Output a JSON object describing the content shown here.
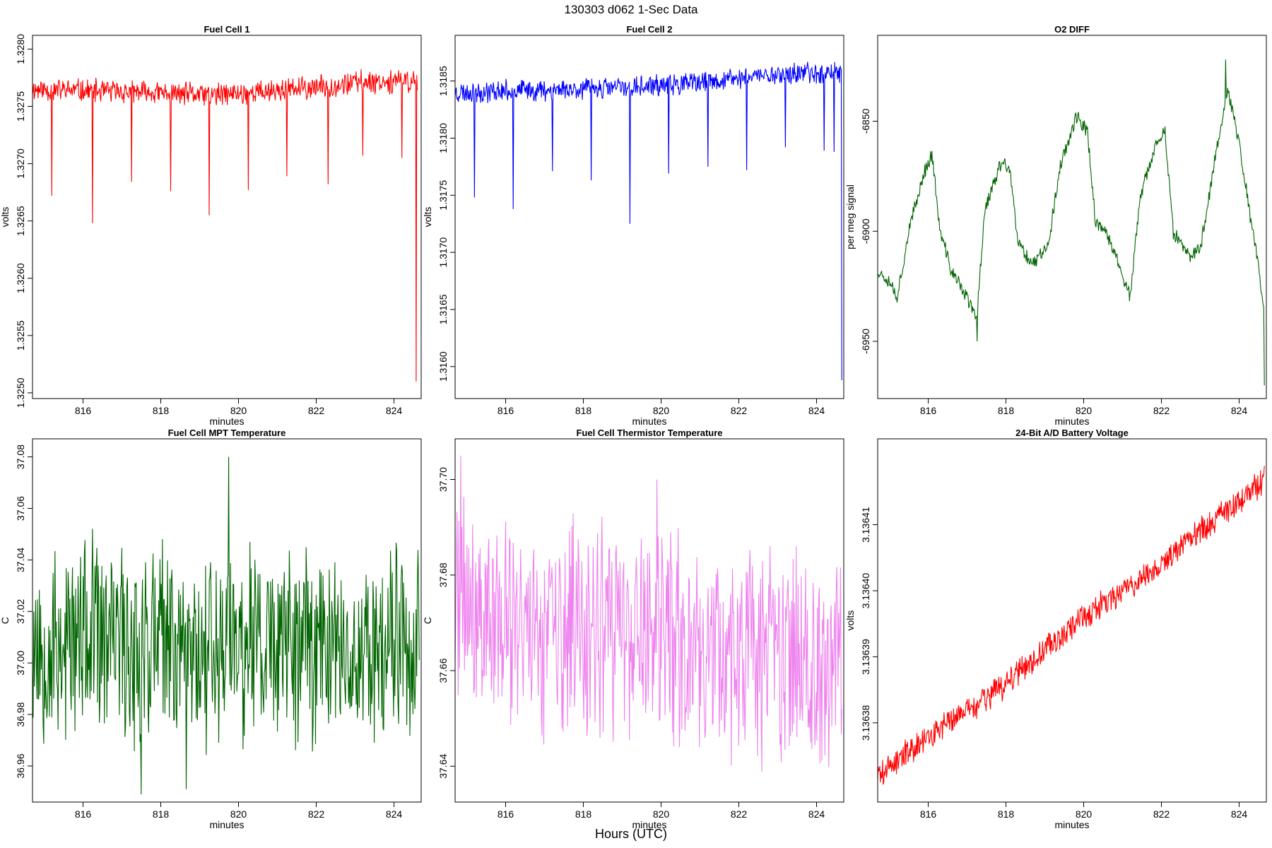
{
  "figure": {
    "title": "130303   d062   1-Sec Data",
    "overall_xlabel": "Hours (UTC)"
  },
  "chart_data": [
    {
      "id": "fc1",
      "type": "line",
      "title": "Fuel Cell 1",
      "xlabel": "minutes",
      "ylabel": "volts",
      "color": "#ff0000",
      "xlim": [
        814.7,
        824.7
      ],
      "ylim": [
        1.32495,
        1.32812
      ],
      "x_ticks": [
        816,
        818,
        820,
        822,
        824
      ],
      "x_tick_labels": [
        "816",
        "818",
        "820",
        "822",
        "824"
      ],
      "y_ticks": [
        1.325,
        1.3255,
        1.326,
        1.3265,
        1.327,
        1.3275,
        1.328
      ],
      "y_tick_labels": [
        "1.3250",
        "1.3255",
        "1.3260",
        "1.3265",
        "1.3270",
        "1.3275",
        "1.3280"
      ],
      "x_range": [
        814.7,
        824.6
      ],
      "base": [
        [
          814.7,
          1.32765
        ],
        [
          819.5,
          1.3276
        ],
        [
          821.5,
          1.32765
        ],
        [
          822.5,
          1.32768
        ],
        [
          823.2,
          1.32772
        ],
        [
          824.6,
          1.32772
        ]
      ],
      "noise": 0.00012,
      "spikes": [
        [
          815.2,
          1.32672
        ],
        [
          816.25,
          1.32648
        ],
        [
          817.25,
          1.32684
        ],
        [
          818.25,
          1.32676
        ],
        [
          819.25,
          1.32655
        ],
        [
          820.25,
          1.32677
        ],
        [
          821.25,
          1.32689
        ],
        [
          822.3,
          1.32682
        ],
        [
          823.2,
          1.32707
        ],
        [
          824.2,
          1.32705
        ],
        [
          824.57,
          1.3251
        ]
      ],
      "points": 700,
      "seed": 11
    },
    {
      "id": "fc2",
      "type": "line",
      "title": "Fuel Cell 2",
      "xlabel": "minutes",
      "ylabel": "volts",
      "color": "#0000ff",
      "xlim": [
        814.7,
        824.7
      ],
      "ylim": [
        1.31572,
        1.3189
      ],
      "x_ticks": [
        816,
        818,
        820,
        822,
        824
      ],
      "x_tick_labels": [
        "816",
        "818",
        "820",
        "822",
        "824"
      ],
      "y_ticks": [
        1.316,
        1.3165,
        1.317,
        1.3175,
        1.318,
        1.3185
      ],
      "y_tick_labels": [
        "1.3160",
        "1.3165",
        "1.3170",
        "1.3175",
        "1.3180",
        "1.3185"
      ],
      "x_range": [
        814.7,
        824.65
      ],
      "base": [
        [
          814.7,
          1.3184
        ],
        [
          819.5,
          1.31845
        ],
        [
          821.0,
          1.31848
        ],
        [
          822.5,
          1.31855
        ],
        [
          824.6,
          1.31858
        ]
      ],
      "noise": 0.00011,
      "spikes": [
        [
          815.2,
          1.31748
        ],
        [
          816.2,
          1.31738
        ],
        [
          817.2,
          1.31771
        ],
        [
          818.2,
          1.31763
        ],
        [
          819.2,
          1.31725
        ],
        [
          820.2,
          1.31769
        ],
        [
          821.2,
          1.31775
        ],
        [
          822.2,
          1.31772
        ],
        [
          823.2,
          1.31792
        ],
        [
          824.2,
          1.31789
        ],
        [
          824.45,
          1.31788
        ],
        [
          824.65,
          1.31588
        ]
      ],
      "points": 700,
      "seed": 23
    },
    {
      "id": "o2",
      "type": "line",
      "title": "O2 DIFF",
      "xlabel": "minutes",
      "ylabel": "per meg signal",
      "color": "#006400",
      "xlim": [
        814.7,
        824.7
      ],
      "ylim": [
        -6976,
        -6811
      ],
      "x_ticks": [
        816,
        818,
        820,
        822,
        824
      ],
      "x_tick_labels": [
        "816",
        "818",
        "820",
        "822",
        "824"
      ],
      "y_ticks": [
        -6950,
        -6900,
        -6850
      ],
      "y_tick_labels": [
        "-6950",
        "-6900",
        "-6850"
      ],
      "x_range": [
        814.7,
        824.65
      ],
      "base": [
        [
          814.7,
          -6918
        ],
        [
          815.0,
          -6922
        ],
        [
          815.2,
          -6930
        ],
        [
          815.5,
          -6900
        ],
        [
          815.9,
          -6873
        ],
        [
          816.1,
          -6865
        ],
        [
          816.3,
          -6900
        ],
        [
          816.6,
          -6918
        ],
        [
          817.0,
          -6930
        ],
        [
          817.25,
          -6940
        ],
        [
          817.45,
          -6890
        ],
        [
          817.9,
          -6868
        ],
        [
          818.1,
          -6872
        ],
        [
          818.3,
          -6905
        ],
        [
          818.7,
          -6915
        ],
        [
          819.1,
          -6905
        ],
        [
          819.4,
          -6870
        ],
        [
          819.8,
          -6848
        ],
        [
          820.1,
          -6855
        ],
        [
          820.3,
          -6895
        ],
        [
          820.7,
          -6905
        ],
        [
          821.0,
          -6920
        ],
        [
          821.2,
          -6930
        ],
        [
          821.45,
          -6885
        ],
        [
          821.9,
          -6858
        ],
        [
          822.1,
          -6855
        ],
        [
          822.3,
          -6900
        ],
        [
          822.7,
          -6912
        ],
        [
          823.0,
          -6908
        ],
        [
          823.4,
          -6865
        ],
        [
          823.7,
          -6835
        ],
        [
          824.0,
          -6860
        ],
        [
          824.3,
          -6895
        ],
        [
          824.5,
          -6915
        ],
        [
          824.62,
          -6935
        ]
      ],
      "noise": 4,
      "spikes": [
        [
          824.65,
          -6970
        ],
        [
          817.25,
          -6950
        ],
        [
          823.65,
          -6822
        ]
      ],
      "points": 600,
      "seed": 37
    },
    {
      "id": "mpt",
      "type": "line",
      "title": "Fuel Cell MPT Temperature",
      "xlabel": "minutes",
      "ylabel": "C",
      "color": "#006400",
      "xlim": [
        814.7,
        824.7
      ],
      "ylim": [
        36.946,
        37.087
      ],
      "x_ticks": [
        816,
        818,
        820,
        822,
        824
      ],
      "x_tick_labels": [
        "816",
        "818",
        "820",
        "822",
        "824"
      ],
      "y_ticks": [
        36.96,
        36.98,
        37.0,
        37.02,
        37.04,
        37.06,
        37.08
      ],
      "y_tick_labels": [
        "36.96",
        "36.98",
        "37.00",
        "37.02",
        "37.04",
        "37.06",
        "37.08"
      ],
      "x_range": [
        814.7,
        824.65
      ],
      "base": [
        [
          814.7,
          37.008
        ],
        [
          824.65,
          37.008
        ]
      ],
      "noise": 0.046,
      "spikes": [
        [
          819.75,
          37.08
        ],
        [
          817.5,
          36.949
        ],
        [
          818.65,
          36.951
        ]
      ],
      "points": 620,
      "seed": 53
    },
    {
      "id": "therm",
      "type": "line",
      "title": "Fuel Cell Thermistor Temperature",
      "xlabel": "minutes",
      "ylabel": "C",
      "color": "#ee82ee",
      "xlim": [
        814.7,
        824.7
      ],
      "ylim": [
        37.6325,
        37.7085
      ],
      "x_ticks": [
        816,
        818,
        820,
        822,
        824
      ],
      "x_tick_labels": [
        "816",
        "818",
        "820",
        "822",
        "824"
      ],
      "y_ticks": [
        37.64,
        37.66,
        37.68,
        37.7
      ],
      "y_tick_labels": [
        "37.64",
        "37.66",
        "37.68",
        "37.70"
      ],
      "x_range": [
        814.7,
        824.65
      ],
      "base": [
        [
          814.7,
          37.673
        ],
        [
          816.5,
          37.668
        ],
        [
          819.0,
          37.667
        ],
        [
          821.5,
          37.664
        ],
        [
          824.65,
          37.662
        ]
      ],
      "noise": 0.027,
      "spikes": [
        [
          814.85,
          37.705
        ],
        [
          819.9,
          37.7
        ]
      ],
      "points": 620,
      "seed": 71
    },
    {
      "id": "batt",
      "type": "line",
      "title": "24-Bit A/D Battery Voltage",
      "xlabel": "minutes",
      "ylabel": "volts",
      "color": "#ff0000",
      "xlim": [
        814.7,
        824.7
      ],
      "ylim": [
        3.136368,
        3.136423
      ],
      "x_ticks": [
        816,
        818,
        820,
        822,
        824
      ],
      "x_tick_labels": [
        "816",
        "818",
        "820",
        "822",
        "824"
      ],
      "y_ticks": [
        3.13638,
        3.13639,
        3.1364,
        3.13641
      ],
      "y_tick_labels": [
        "3.13638",
        "3.13639",
        "3.13640",
        "3.13641"
      ],
      "x_range": [
        814.7,
        824.65
      ],
      "base": [
        [
          814.7,
          3.136372
        ],
        [
          816.0,
          3.136378
        ],
        [
          818.0,
          3.136386
        ],
        [
          820.0,
          3.136396
        ],
        [
          822.0,
          3.136404
        ],
        [
          824.65,
          3.136417
        ]
      ],
      "noise": 2.5e-06,
      "spikes": [],
      "points": 700,
      "seed": 89
    }
  ]
}
